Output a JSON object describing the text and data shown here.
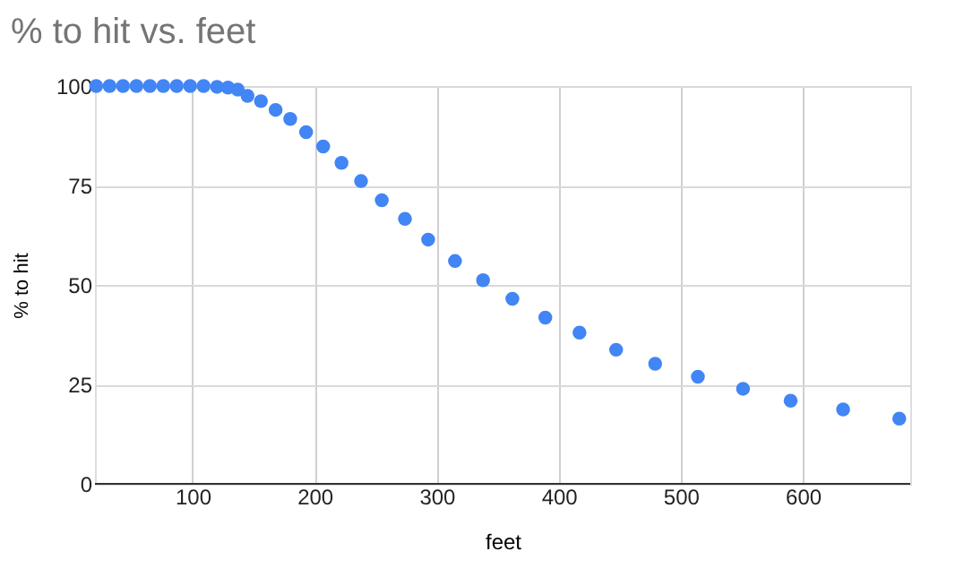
{
  "chart_data": {
    "type": "scatter",
    "title": "% to hit vs. feet",
    "xlabel": "feet",
    "ylabel": "% to hit",
    "x": [
      21,
      32,
      43,
      54,
      65,
      76,
      87,
      98,
      109,
      120,
      129,
      137,
      145,
      156,
      168,
      180,
      193,
      207,
      222,
      238,
      255,
      274,
      293,
      315,
      338,
      362,
      389,
      417,
      447,
      479,
      514,
      551,
      590,
      633,
      679
    ],
    "series": [
      {
        "color": "#4285f4",
        "values": [
          100,
          100,
          100,
          100,
          100,
          100,
          100,
          100,
          100,
          99.8,
          99.6,
          99.1,
          97.5,
          96.2,
          94.0,
          91.7,
          88.4,
          84.8,
          80.7,
          76.1,
          71.3,
          66.6,
          61.4,
          56.0,
          51.2,
          46.5,
          41.8,
          38.0,
          33.7,
          30.2,
          26.9,
          23.9,
          20.9,
          18.7,
          16.4
        ]
      }
    ],
    "xlim": [
      20,
      688
    ],
    "xticks": [
      100,
      200,
      300,
      400,
      500,
      600
    ],
    "ylim": [
      0,
      100
    ],
    "yticks": [
      0,
      25,
      50,
      75,
      100
    ],
    "grid": true,
    "marker": "circle",
    "legend": false
  }
}
